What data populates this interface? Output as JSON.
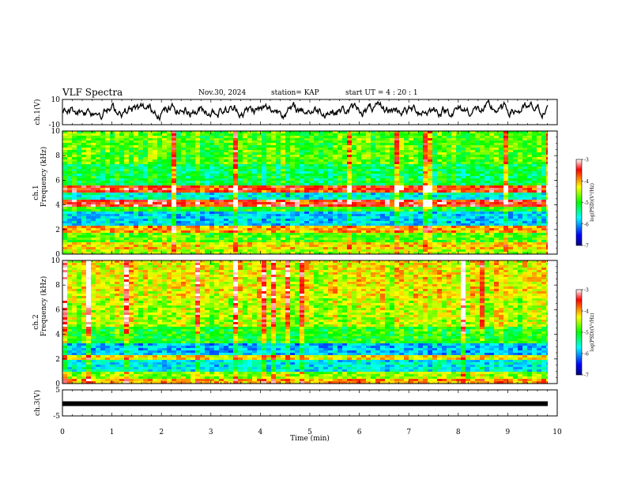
{
  "header": {
    "title": "VLF Spectra",
    "date": "Nov.30, 2024",
    "station": "station= KAP",
    "start_ut": "start  UT =   4 : 20 : 1"
  },
  "colors": {
    "waveform": "#000000",
    "colormap": [
      "#000080",
      "#0000ff",
      "#00ffff",
      "#00ff00",
      "#ffff00",
      "#ff0000",
      "#ffffff"
    ]
  },
  "chart_data": [
    {
      "type": "line",
      "name": "ch1-waveform",
      "ylabel": "ch.1(V)",
      "ylim": [
        -10,
        10
      ],
      "yticks": [
        "10",
        "-10"
      ],
      "xlim": [
        0,
        10
      ],
      "series": [
        {
          "note": "noisy waveform roughly between -6 and +8 V"
        }
      ]
    },
    {
      "type": "heatmap",
      "name": "ch1-spectrogram",
      "ylabel": "ch.1",
      "ylabel2": "Frequency (kHz)",
      "ylim": [
        0,
        10
      ],
      "yticks": [
        "0",
        "2",
        "4",
        "6",
        "8",
        "10"
      ],
      "xlim": [
        0,
        10
      ],
      "colorbar": {
        "label": "log(PSD)(V²/Hz)",
        "range": [
          -7,
          -3
        ],
        "ticks": [
          "-3",
          "-4",
          "-5",
          "-6",
          "-7"
        ]
      },
      "bands": [
        {
          "from": 0.0,
          "to": 0.3,
          "level": -4.5
        },
        {
          "from": 0.3,
          "to": 1.0,
          "level": -4.2
        },
        {
          "from": 1.0,
          "to": 1.8,
          "level": -4.8
        },
        {
          "from": 1.8,
          "to": 2.4,
          "level": -4.0
        },
        {
          "from": 2.4,
          "to": 3.4,
          "level": -5.8
        },
        {
          "from": 3.4,
          "to": 3.9,
          "level": -5.0
        },
        {
          "from": 3.9,
          "to": 4.4,
          "level": -3.5
        },
        {
          "from": 4.4,
          "to": 5.0,
          "level": -5.6
        },
        {
          "from": 5.0,
          "to": 5.6,
          "level": -3.6
        },
        {
          "from": 5.6,
          "to": 7.4,
          "level": -5.2
        },
        {
          "from": 7.4,
          "to": 10.0,
          "level": -4.8
        }
      ]
    },
    {
      "type": "heatmap",
      "name": "ch2-spectrogram",
      "ylabel": "ch.2",
      "ylabel2": "Frequency (kHz)",
      "ylim": [
        0,
        10
      ],
      "yticks": [
        "0",
        "2",
        "4",
        "6",
        "8",
        "10"
      ],
      "xlim": [
        0,
        10
      ],
      "colorbar": {
        "label": "log(PSD)(V²/Hz)",
        "range": [
          -7,
          -3
        ],
        "ticks": [
          "-3",
          "-4",
          "-5",
          "-6",
          "-7"
        ]
      },
      "bands": [
        {
          "from": 0.0,
          "to": 0.3,
          "level": -4.0
        },
        {
          "from": 0.3,
          "to": 1.0,
          "level": -4.6
        },
        {
          "from": 1.0,
          "to": 2.0,
          "level": -5.7
        },
        {
          "from": 2.0,
          "to": 2.4,
          "level": -4.2
        },
        {
          "from": 2.4,
          "to": 3.3,
          "level": -5.9
        },
        {
          "from": 3.3,
          "to": 4.6,
          "level": -5.0
        },
        {
          "from": 4.6,
          "to": 7.0,
          "level": -4.5
        },
        {
          "from": 7.0,
          "to": 10.0,
          "level": -4.3
        }
      ]
    },
    {
      "type": "line",
      "name": "ch3-waveform",
      "ylabel": "ch.3(V)",
      "ylim": [
        -5,
        5
      ],
      "yticks": [
        "5",
        "-5"
      ],
      "xlim": [
        0,
        10
      ],
      "series": [
        {
          "note": "flat thick trace near -0.3 V"
        }
      ],
      "level": -0.3
    }
  ],
  "xaxis": {
    "label": "Time (min)",
    "ticks": [
      "0",
      "1",
      "2",
      "3",
      "4",
      "5",
      "6",
      "7",
      "8",
      "9",
      "10"
    ]
  }
}
